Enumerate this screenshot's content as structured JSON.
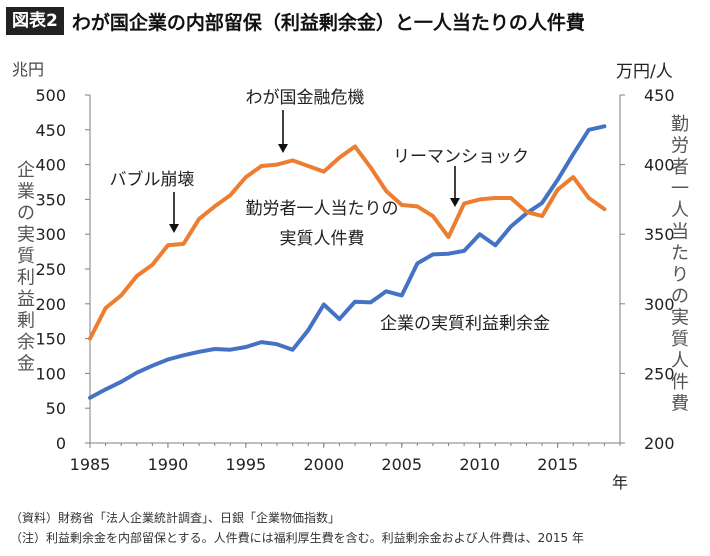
{
  "header": {
    "badge": "図表2",
    "title": "わが国企業の内部留保（利益剰余金）と一人当たりの人件費"
  },
  "notes": [
    "（資料）財務省「法人企業統計調査」、日銀「企業物価指数」",
    "（注）利益剰余金を内部留保とする。人件費には福利厚生費を含む。利益剰余金および人件費は、2015 年"
  ],
  "chart_data": {
    "type": "line",
    "x_unit": "年",
    "y_left": {
      "unit": "兆円",
      "label": "企業の実質利益剰余金",
      "range": [
        0,
        500
      ],
      "ticks": [
        "0",
        "50",
        "100",
        "150",
        "200",
        "250",
        "300",
        "350",
        "400",
        "450",
        "500"
      ]
    },
    "y_right": {
      "unit": "万円/人",
      "label": "勤労者一人当たりの実質人件費",
      "range": [
        200,
        450
      ],
      "ticks": [
        "200",
        "250",
        "300",
        "350",
        "400",
        "450"
      ]
    },
    "x_range": [
      1985,
      2019
    ],
    "x_ticks": [
      "1985",
      "1990",
      "1995",
      "2000",
      "2005",
      "2010",
      "2015"
    ],
    "series": [
      {
        "name": "企業の実質利益剰余金",
        "axis": "left",
        "color": "#4472C4",
        "x": [
          1985,
          1986,
          1987,
          1988,
          1989,
          1990,
          1991,
          1992,
          1993,
          1994,
          1995,
          1996,
          1997,
          1998,
          1999,
          2000,
          2001,
          2002,
          2003,
          2004,
          2005,
          2006,
          2007,
          2008,
          2009,
          2010,
          2011,
          2012,
          2013,
          2014,
          2015,
          2016,
          2017,
          2018
        ],
        "values": [
          65,
          77,
          88,
          101,
          111,
          120,
          126,
          131,
          135,
          134,
          138,
          145,
          142,
          134,
          162,
          199,
          178,
          203,
          202,
          218,
          212,
          258,
          271,
          272,
          276,
          300,
          284,
          311,
          330,
          345,
          378,
          415,
          450,
          455
        ]
      },
      {
        "name": "勤労者一人当たりの実質人件費",
        "axis": "right",
        "color": "#ED7D31",
        "x": [
          1985,
          1986,
          1987,
          1988,
          1989,
          1990,
          1991,
          1992,
          1993,
          1994,
          1995,
          1996,
          1997,
          1998,
          1999,
          2000,
          2001,
          2002,
          2003,
          2004,
          2005,
          2006,
          2007,
          2008,
          2009,
          2010,
          2011,
          2012,
          2013,
          2014,
          2015,
          2016,
          2017,
          2018
        ],
        "values": [
          275,
          297,
          306,
          320,
          328,
          342,
          343,
          361,
          370,
          378,
          391,
          399,
          400,
          403,
          399,
          395,
          405,
          413,
          398,
          381,
          371,
          370,
          363,
          348,
          372,
          375,
          376,
          376,
          366,
          363,
          382,
          391,
          376,
          368
        ]
      }
    ],
    "annotations": [
      {
        "text": "バブル崩壊"
      },
      {
        "text": "わが国金融危機"
      },
      {
        "text": "リーマンショック"
      },
      {
        "text": "勤労者一人当たりの"
      },
      {
        "text": "実質人件費"
      },
      {
        "text": "企業の実質利益剰余金"
      }
    ]
  }
}
